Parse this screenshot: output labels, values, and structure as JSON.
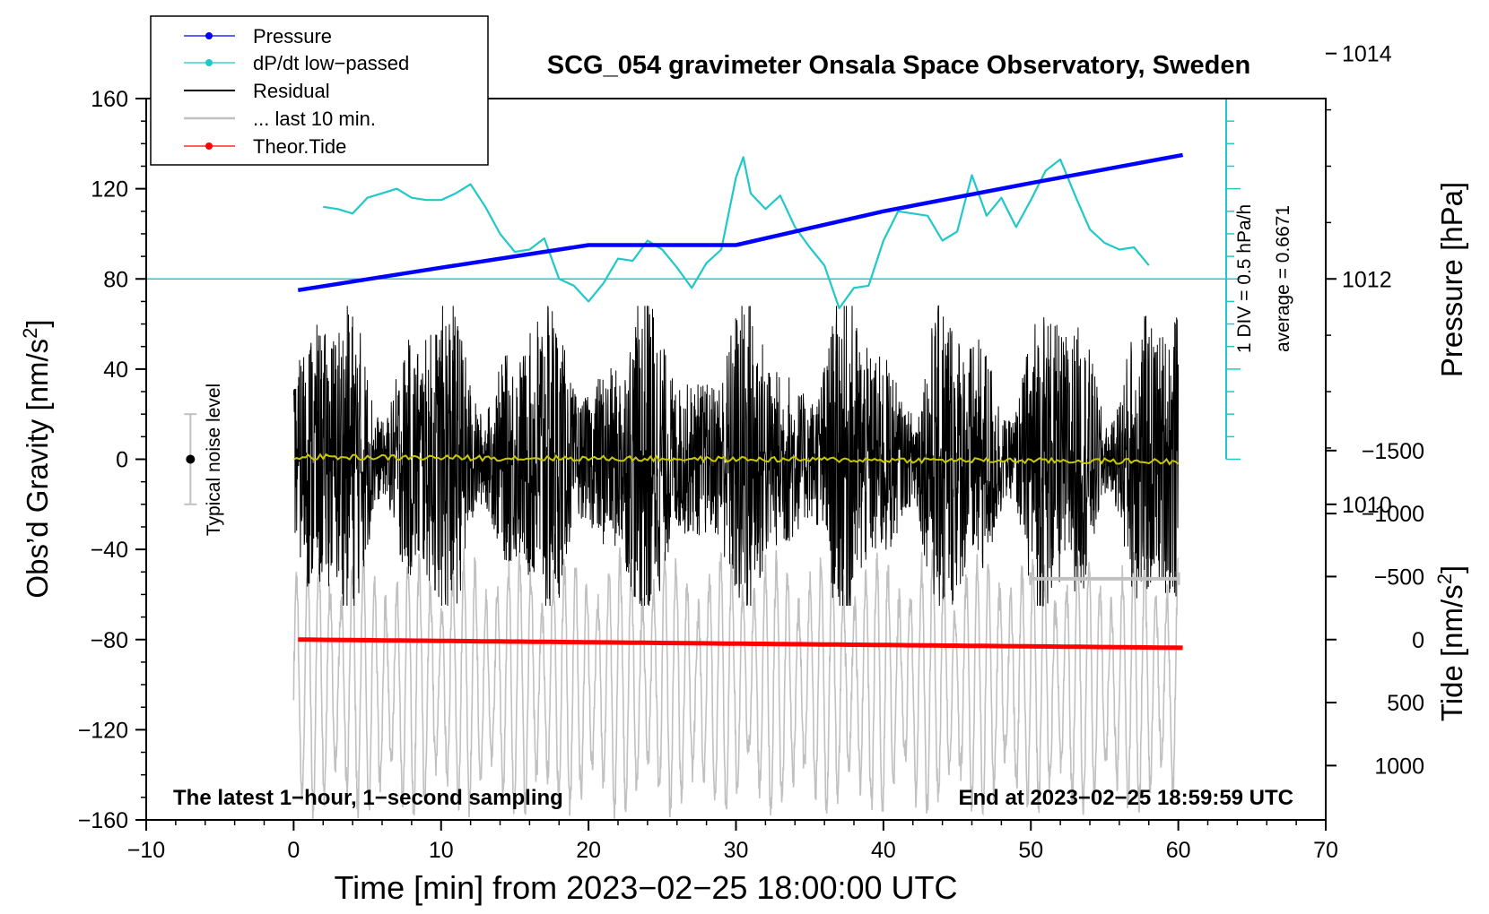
{
  "chart_data": {
    "type": "line",
    "title": "SCG_054 gravimeter Onsala Space Observatory, Sweden",
    "xlabel": "Time [min] from 2023−02−25 18:00:00 UTC",
    "ylabel_left": "Obs’d Gravity [nm/s",
    "ylabel_left_sup": "2",
    "ylabel_left_end": "]",
    "ylabel_right_pressure": "Pressure [hPa]",
    "ylabel_right_tide": "Tide [nm/s",
    "ylabel_right_tide_sup": "2",
    "ylabel_right_tide_end": "]",
    "xlim": [
      -10,
      70
    ],
    "ylim": [
      -160,
      160
    ],
    "x_ticks": [
      "−10",
      "0",
      "10",
      "20",
      "30",
      "40",
      "50",
      "60",
      "70"
    ],
    "y_ticks": [
      "160",
      "120",
      "80",
      "40",
      "0",
      "−40",
      "−80",
      "−120",
      "−160"
    ],
    "pressure_ticks": [
      "1014",
      "1012",
      "1010"
    ],
    "tide_ticks": [
      "1000",
      "500",
      "0",
      "−500",
      "−1000",
      "−1500"
    ],
    "legend": {
      "position": "top-left",
      "entries": [
        {
          "label": "Pressure",
          "color": "#0000ff",
          "marker": "dot"
        },
        {
          "label": "dP/dt low−passed",
          "color": "#20c8c8",
          "marker": "dot"
        },
        {
          "label": "Residual",
          "color": "#000000",
          "marker": "line"
        },
        {
          "label": "... last 10 min.",
          "color": "#c0c0c0",
          "marker": "line"
        },
        {
          "label": "Theor.Tide",
          "color": "#ff0000",
          "marker": "dot"
        }
      ]
    },
    "annotations": {
      "noise": "Typical noise level",
      "div": "1 DIV = 0.5 hPa/h",
      "average": "average = 0.6671",
      "bottom_left": "The latest 1−hour, 1−second sampling",
      "bottom_right": "End at 2023−02−25 18:59:59 UTC"
    },
    "series": [
      {
        "name": "Pressure",
        "unit": "hPa",
        "x": [
          0.3,
          10,
          20,
          30,
          35,
          40,
          50,
          60.3
        ],
        "values": [
          1011.9,
          1012.1,
          1012.3,
          1012.3,
          1012.45,
          1012.6,
          1012.85,
          1013.1
        ]
      },
      {
        "name": "dP/dt low-passed",
        "unit": "gravity-axis display units",
        "x": [
          2,
          3,
          4,
          5,
          6,
          7,
          8,
          9,
          10,
          11,
          12,
          13,
          14,
          15,
          16,
          17,
          18,
          19,
          20,
          21,
          22,
          23,
          24,
          25,
          26,
          27,
          28,
          29,
          30,
          30.5,
          31,
          32,
          33,
          34,
          35,
          36,
          37,
          38,
          39,
          40,
          41,
          42,
          43,
          44,
          45,
          46,
          47,
          48,
          49,
          50,
          51,
          52,
          53,
          54,
          55,
          56,
          57,
          58
        ],
        "values": [
          112,
          111,
          109,
          116,
          118,
          120,
          116,
          115,
          115,
          118,
          122,
          112,
          100,
          92,
          93,
          98,
          80,
          77,
          70,
          78,
          89,
          88,
          97,
          93,
          85,
          76,
          87,
          93,
          125,
          134,
          118,
          111,
          117,
          103,
          94,
          86,
          67,
          76,
          77,
          97,
          110,
          109,
          108,
          97,
          101,
          126,
          108,
          116,
          103,
          115,
          128,
          133,
          117,
          102,
          96,
          93,
          94,
          86
        ]
      },
      {
        "name": "Residual",
        "unit": "nm/s2",
        "x": [
          0,
          60
        ],
        "amplitude_min": -65,
        "amplitude_max": 68
      },
      {
        "name": "Residual smoothed",
        "color": "#c8c800",
        "x": [
          0,
          60
        ],
        "values": [
          1,
          -1
        ]
      },
      {
        "name": "... last 10 min.",
        "unit": "nm/s2 (plotted with offset)",
        "x": [
          50,
          60
        ],
        "center": -100,
        "amplitude": 55
      },
      {
        "name": "Theor.Tide",
        "unit": "nm/s2",
        "x": [
          0.3,
          60.3
        ],
        "values": [
          0,
          65
        ]
      }
    ],
    "dpdt_reference_level": 80,
    "noise_bar": {
      "x": -7,
      "center": 0,
      "half_range": 20
    },
    "last10_marker": {
      "x_start": 50,
      "x_end": 60
    }
  }
}
